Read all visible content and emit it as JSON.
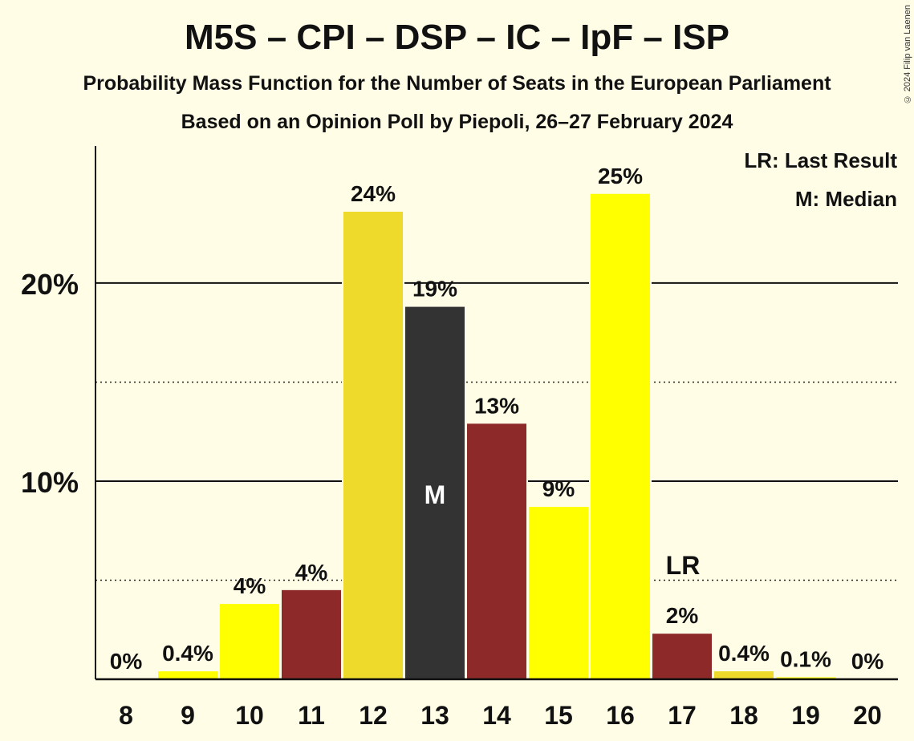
{
  "copyright": "© 2024 Filip van Laenen",
  "chart_data": {
    "type": "bar",
    "title": "M5S – CPI – DSP – IC – IpF – ISP",
    "subtitle": "Probability Mass Function for the Number of Seats in the European Parliament",
    "subtitle2": "Based on an Opinion Poll by Piepoli, 26–27 February 2024",
    "categories": [
      "8",
      "9",
      "10",
      "11",
      "12",
      "13",
      "14",
      "15",
      "16",
      "17",
      "18",
      "19",
      "20"
    ],
    "values": [
      0,
      0.4,
      3.8,
      4.5,
      23.6,
      18.8,
      12.9,
      8.7,
      24.5,
      2.3,
      0.4,
      0.1,
      0
    ],
    "value_labels": [
      "0%",
      "0.4%",
      "4%",
      "4%",
      "24%",
      "19%",
      "13%",
      "9%",
      "25%",
      "2%",
      "0.4%",
      "0.1%",
      "0%"
    ],
    "bar_colors": [
      "#FFFF00",
      "#FFFF00",
      "#FFFF00",
      "#8E2929",
      "#EEDA2A",
      "#333333",
      "#8E2929",
      "#FFFF00",
      "#FFFF00",
      "#8E2929",
      "#EEDA2A",
      "#FFFF00",
      "#FFFF00"
    ],
    "ylim": [
      0,
      27
    ],
    "yticks": [
      10,
      20
    ],
    "ytick_labels": [
      "10%",
      "20%"
    ],
    "minor_gridlines": [
      5,
      15
    ],
    "median_category": "13",
    "median_marker": "M",
    "last_result_category": "17",
    "last_result_marker": "LR",
    "legend": [
      "LR: Last Result",
      "M: Median"
    ],
    "legend_position": "top-right",
    "grid": true
  }
}
